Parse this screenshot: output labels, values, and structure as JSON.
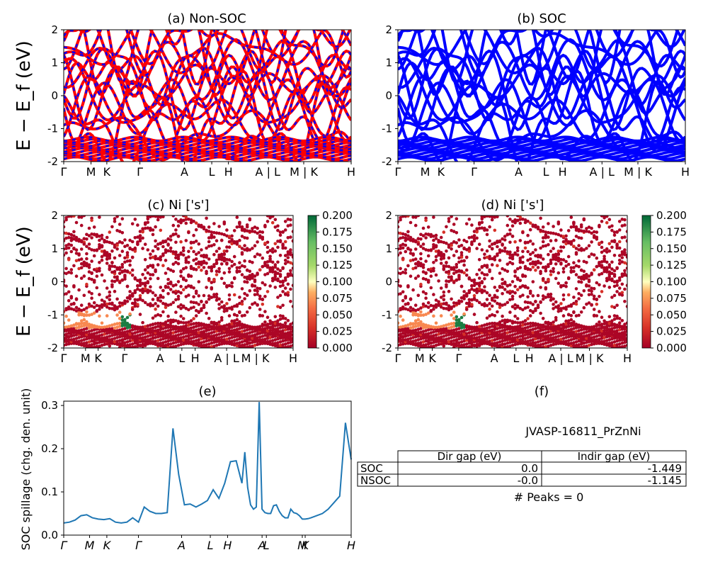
{
  "figure": {
    "panel_a_title": "(a) Non-SOC",
    "panel_b_title": "(b) SOC",
    "panel_c_title": "(c)  Ni ['s']",
    "panel_d_title": "(d) Ni ['s']",
    "panel_e_title": "(e)",
    "panel_f_title": "(f)",
    "ylabel_bands": "E − E_f (eV)",
    "ylabel_spillage": "SOC spillage (chg. den. unit)",
    "colors": {
      "nonsoc": "#ff0000",
      "soc": "#0000ff",
      "spillage_line": "#1f77b4"
    }
  },
  "kpath_ticks": [
    "Γ",
    "M",
    "K",
    "Γ",
    "A",
    "L",
    "H",
    "A | L",
    "M | K",
    "H"
  ],
  "kpath_ticks_e": [
    "Γ",
    "M",
    "K",
    "Γ",
    "A",
    "L",
    "H",
    "A",
    "L",
    "M",
    "K",
    "H"
  ],
  "chart_data": [
    {
      "type": "line",
      "title": "(a) Non-SOC",
      "ylabel": "E − E_f (eV)",
      "ylim": [
        -2,
        2
      ],
      "yticks": [
        -2,
        -1,
        0,
        1,
        2
      ],
      "series": [
        {
          "name": "",
          "color": "#ff0000"
        },
        {
          "name": "",
          "color": "#0000ff"
        }
      ]
    },
    {
      "type": "line",
      "title": "(b) SOC",
      "ylim": [
        -2,
        2
      ],
      "yticks": [
        -2,
        -1,
        0,
        1,
        2
      ],
      "series": [
        {
          "name": "",
          "color": "#0000ff"
        }
      ]
    },
    {
      "type": "scatter",
      "title": "(c)  Ni ['s']",
      "ylabel": "E − E_f (eV)",
      "ylim": [
        -2,
        2
      ],
      "colorbar": {
        "min": 0.0,
        "max": 0.2,
        "ticks": [
          "0.000",
          "0.025",
          "0.050",
          "0.075",
          "0.100",
          "0.125",
          "0.150",
          "0.175",
          "0.200"
        ],
        "colormap": "RdYlGn"
      }
    },
    {
      "type": "scatter",
      "title": "(d) Ni ['s']",
      "ylim": [
        -2,
        2
      ],
      "colorbar": {
        "min": 0.0,
        "max": 0.2,
        "ticks": [
          "0.000",
          "0.025",
          "0.050",
          "0.075",
          "0.100",
          "0.125",
          "0.150",
          "0.175",
          "0.200"
        ],
        "colormap": "RdYlGn"
      }
    },
    {
      "type": "line",
      "title": "(e)",
      "ylabel": "SOC spillage (chg. den. unit)",
      "ylim": [
        0.0,
        0.31
      ],
      "yticks": [
        "0.0",
        "0.1",
        "0.2",
        "0.3"
      ],
      "x": [
        0,
        2,
        4,
        6,
        8,
        10,
        12,
        14,
        16,
        18,
        20,
        22,
        24,
        26,
        28,
        30,
        32,
        34,
        36,
        38,
        40,
        42,
        44,
        46,
        48,
        50,
        52,
        54,
        56,
        58,
        60,
        62,
        63,
        64,
        65,
        66,
        67,
        68,
        69,
        70,
        71,
        72,
        73,
        74,
        75,
        76,
        77,
        78,
        79,
        80,
        81,
        82,
        83,
        84,
        85,
        86,
        88,
        90,
        92,
        94,
        96,
        98,
        100
      ],
      "values": [
        0.028,
        0.03,
        0.035,
        0.045,
        0.047,
        0.04,
        0.037,
        0.036,
        0.038,
        0.03,
        0.028,
        0.03,
        0.04,
        0.03,
        0.065,
        0.055,
        0.05,
        0.05,
        0.052,
        0.247,
        0.14,
        0.07,
        0.072,
        0.065,
        0.072,
        0.08,
        0.105,
        0.085,
        0.12,
        0.17,
        0.172,
        0.12,
        0.192,
        0.11,
        0.07,
        0.06,
        0.065,
        0.308,
        0.06,
        0.052,
        0.05,
        0.05,
        0.068,
        0.07,
        0.055,
        0.045,
        0.04,
        0.04,
        0.06,
        0.052,
        0.05,
        0.045,
        0.037,
        0.037,
        0.038,
        0.04,
        0.045,
        0.05,
        0.06,
        0.075,
        0.09,
        0.26,
        0.175
      ],
      "series": [
        {
          "name": "",
          "color": "#1f77b4"
        }
      ]
    }
  ],
  "table_f": {
    "title": "JVASP-16811_PrZnNi",
    "headers": [
      "Dir gap (eV)",
      "Indir gap (eV)"
    ],
    "rows": [
      {
        "label": "SOC",
        "dir": "0.0",
        "indir": "-1.449"
      },
      {
        "label": "NSOC",
        "dir": "-0.0",
        "indir": "-1.145"
      }
    ],
    "footer": "# Peaks = 0"
  }
}
